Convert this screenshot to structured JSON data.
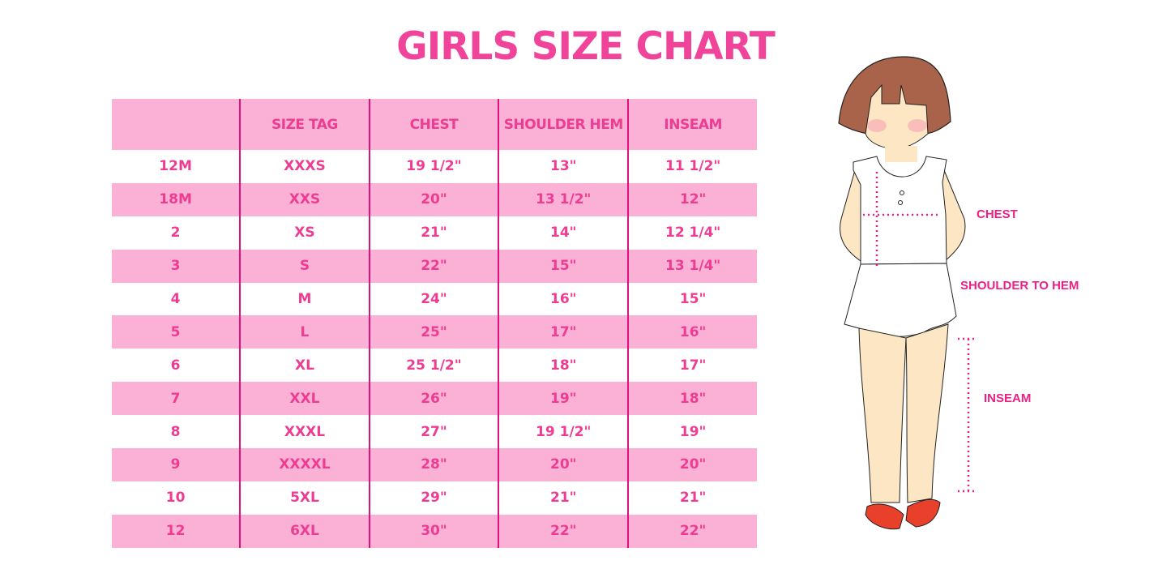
{
  "title": "GIRLS SIZE CHART",
  "table": {
    "headers": [
      "",
      "SIZE TAG",
      "CHEST",
      "SHOULDER HEM",
      "INSEAM"
    ],
    "rows": [
      [
        "12M",
        "XXXS",
        "19 1/2\"",
        "13\"",
        "11 1/2\""
      ],
      [
        "18M",
        "XXS",
        "20\"",
        "13 1/2\"",
        "12\""
      ],
      [
        "2",
        "XS",
        "21\"",
        "14\"",
        "12 1/4\""
      ],
      [
        "3",
        "S",
        "22\"",
        "15\"",
        "13 1/4\""
      ],
      [
        "4",
        "M",
        "24\"",
        "16\"",
        "15\""
      ],
      [
        "5",
        "L",
        "25\"",
        "17\"",
        "16\""
      ],
      [
        "6",
        "XL",
        "25 1/2\"",
        "18\"",
        "17\""
      ],
      [
        "7",
        "XXL",
        "26\"",
        "19\"",
        "18\""
      ],
      [
        "8",
        "XXXL",
        "27\"",
        "19 1/2\"",
        "19\""
      ],
      [
        "9",
        "XXXXL",
        "28\"",
        "20\"",
        "20\""
      ],
      [
        "10",
        "5XL",
        "29\"",
        "21\"",
        "21\""
      ],
      [
        "12",
        "6XL",
        "30\"",
        "22\"",
        "22\""
      ]
    ]
  },
  "diagram": {
    "labels": {
      "chest": "CHEST",
      "shoulder": "SHOULDER TO HEM",
      "inseam": "INSEAM"
    }
  },
  "colors": {
    "accent": "#ec3d93",
    "band": "#fbb1d6",
    "rule": "#e0107f"
  }
}
